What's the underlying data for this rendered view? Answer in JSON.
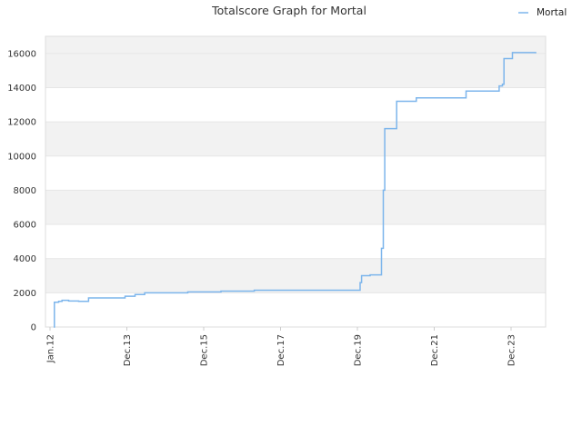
{
  "chart_data": {
    "type": "line",
    "title": "Totalscore Graph for Mortal",
    "xlabel": "",
    "ylabel": "",
    "legend_position": "top-right",
    "grid": true,
    "x_tick_labels": [
      "Jan.12",
      "Dec.13",
      "Dec.15",
      "Dec.17",
      "Dec.19",
      "Dec.21",
      "Dec.23"
    ],
    "ylim": [
      0,
      17000
    ],
    "y_ticks": [
      0,
      2000,
      4000,
      6000,
      8000,
      10000,
      12000,
      14000,
      16000
    ],
    "xlim": [
      "2011-11-01",
      "2024-06-01"
    ],
    "colors": {
      "series": "#7cb5ec",
      "band": "#f2f2f2",
      "grid": "#e6e6e6"
    },
    "series": [
      {
        "name": "Mortal",
        "step": true,
        "points": [
          [
            "2012-01-15",
            0
          ],
          [
            "2012-01-22",
            1450
          ],
          [
            "2012-03-01",
            1500
          ],
          [
            "2012-04-01",
            1560
          ],
          [
            "2012-06-01",
            1520
          ],
          [
            "2012-09-01",
            1500
          ],
          [
            "2012-11-15",
            1500
          ],
          [
            "2012-12-01",
            1700
          ],
          [
            "2013-03-01",
            1700
          ],
          [
            "2013-08-01",
            1700
          ],
          [
            "2013-11-01",
            1800
          ],
          [
            "2014-02-01",
            1900
          ],
          [
            "2014-05-01",
            2000
          ],
          [
            "2015-06-01",
            2050
          ],
          [
            "2016-04-01",
            2100
          ],
          [
            "2017-02-01",
            2150
          ],
          [
            "2019-05-01",
            2150
          ],
          [
            "2019-09-01",
            2150
          ],
          [
            "2019-10-01",
            2600
          ],
          [
            "2019-10-15",
            3000
          ],
          [
            "2020-01-01",
            3050
          ],
          [
            "2020-04-01",
            3050
          ],
          [
            "2020-04-15",
            4600
          ],
          [
            "2020-05-01",
            8000
          ],
          [
            "2020-05-15",
            11600
          ],
          [
            "2020-09-01",
            13200
          ],
          [
            "2021-03-01",
            13400
          ],
          [
            "2022-06-01",
            13800
          ],
          [
            "2023-04-01",
            14100
          ],
          [
            "2023-05-01",
            14200
          ],
          [
            "2023-05-15",
            15700
          ],
          [
            "2023-08-01",
            16050
          ],
          [
            "2023-11-01",
            16050
          ],
          [
            "2024-03-01",
            16000
          ]
        ]
      }
    ]
  }
}
